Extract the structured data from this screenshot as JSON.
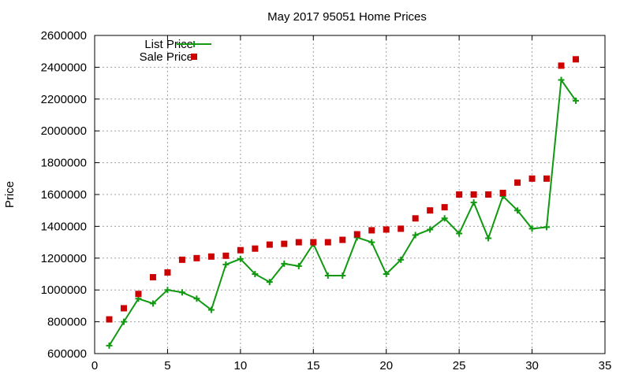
{
  "chart_data": {
    "type": "line",
    "title": "May 2017 95051 Home Prices",
    "xlabel": "",
    "ylabel": "Price",
    "xlim": [
      0,
      35
    ],
    "ylim": [
      600000,
      2600000
    ],
    "xticks": [
      0,
      5,
      10,
      15,
      20,
      25,
      30,
      35
    ],
    "yticks": [
      600000,
      800000,
      1000000,
      1200000,
      1400000,
      1600000,
      1800000,
      2000000,
      2200000,
      2400000,
      2600000
    ],
    "grid": true,
    "legend": "top-left",
    "x": [
      1,
      2,
      3,
      4,
      5,
      6,
      7,
      8,
      9,
      10,
      11,
      12,
      13,
      14,
      15,
      16,
      17,
      18,
      19,
      20,
      21,
      22,
      23,
      24,
      25,
      26,
      27,
      28,
      29,
      30,
      31,
      32,
      33
    ],
    "series": [
      {
        "name": "List Price",
        "style": "linespoints",
        "color": "#119911",
        "values": [
          650000,
          800000,
          945000,
          915000,
          1000000,
          985000,
          945000,
          875000,
          1160000,
          1195000,
          1100000,
          1050000,
          1165000,
          1150000,
          1290000,
          1090000,
          1090000,
          1330000,
          1300000,
          1100000,
          1190000,
          1345000,
          1380000,
          1450000,
          1355000,
          1550000,
          1325000,
          1590000,
          1500000,
          1385000,
          1395000,
          2320000,
          2190000
        ]
      },
      {
        "name": "Sale Price",
        "style": "points",
        "color": "#cc0000",
        "values": [
          815000,
          885000,
          975000,
          1080000,
          1110000,
          1190000,
          1200000,
          1210000,
          1215000,
          1250000,
          1260000,
          1285000,
          1290000,
          1300000,
          1300000,
          1300000,
          1315000,
          1350000,
          1375000,
          1380000,
          1385000,
          1450000,
          1500000,
          1520000,
          1600000,
          1600000,
          1600000,
          1610000,
          1675000,
          1700000,
          1700000,
          2410000,
          2450000
        ]
      }
    ]
  }
}
